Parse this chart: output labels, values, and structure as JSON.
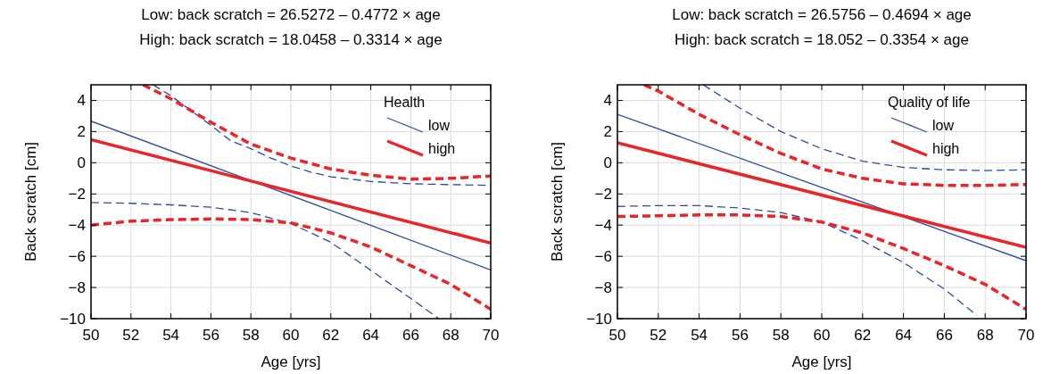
{
  "chart_data": [
    {
      "type": "line",
      "title": "Low: back scratch = 26.5272 – 0.4772 × age",
      "subtitle": "High: back scratch = 18.0458 – 0.3314 × age",
      "xlabel": "Age [yrs]",
      "ylabel": "Back scratch [cm]",
      "legend_title": "Health",
      "legend": "top right",
      "grid": true,
      "xlim": [
        50,
        70
      ],
      "ylim": [
        -10,
        5
      ],
      "xticks": [
        50,
        52,
        54,
        56,
        58,
        60,
        62,
        64,
        66,
        68,
        70
      ],
      "yticks": [
        -10,
        -8,
        -6,
        -4,
        -2,
        0,
        2,
        4
      ],
      "series": [
        {
          "name": "low",
          "color": "#2e4a9e",
          "line_style": "solid",
          "x": [
            50,
            70
          ],
          "values": [
            2.67,
            -6.88
          ]
        },
        {
          "name": "high",
          "color": "#e8262a",
          "line_style": "solid",
          "x": [
            50,
            70
          ],
          "values": [
            1.48,
            -5.15
          ]
        },
        {
          "color": "#2e4a9e",
          "line_style": "dashed",
          "x": [
            53.1,
            54,
            56,
            57,
            58,
            59,
            60,
            61,
            62,
            64,
            66,
            68,
            70
          ],
          "values": [
            5,
            4.3,
            2.4,
            1.4,
            0.9,
            0.3,
            -0.2,
            -0.6,
            -0.9,
            -1.2,
            -1.35,
            -1.4,
            -1.45
          ]
        },
        {
          "color": "#e8262a",
          "line_style": "dashed",
          "x": [
            52.6,
            54,
            56,
            58,
            60,
            62,
            64,
            66,
            68,
            70
          ],
          "values": [
            5,
            4.1,
            2.6,
            1.2,
            0.3,
            -0.4,
            -0.8,
            -1.05,
            -1.0,
            -0.85
          ]
        },
        {
          "color": "#2e4a9e",
          "line_style": "dashed",
          "x": [
            50,
            52,
            54,
            56,
            58,
            60,
            62,
            64,
            66,
            67.4
          ],
          "values": [
            -2.55,
            -2.6,
            -2.7,
            -2.85,
            -3.2,
            -3.9,
            -5.1,
            -6.9,
            -8.7,
            -10
          ]
        },
        {
          "color": "#e8262a",
          "line_style": "dashed",
          "x": [
            50,
            52,
            54,
            56,
            58,
            60,
            62,
            64,
            66,
            68,
            70
          ],
          "values": [
            -4,
            -3.75,
            -3.65,
            -3.6,
            -3.65,
            -3.85,
            -4.5,
            -5.4,
            -6.6,
            -7.8,
            -9.4
          ]
        }
      ]
    },
    {
      "type": "line",
      "title": "Low: back scratch = 26.5756 – 0.4694 × age",
      "subtitle": "High: back scratch = 18.052 – 0.3354 × age",
      "xlabel": "Age [yrs]",
      "ylabel": "Back scratch [cm]",
      "legend_title": "Quality of life",
      "legend": "top right",
      "grid": true,
      "xlim": [
        50,
        70
      ],
      "ylim": [
        -10,
        5
      ],
      "xticks": [
        50,
        52,
        54,
        56,
        58,
        60,
        62,
        64,
        66,
        68,
        70
      ],
      "yticks": [
        -10,
        -8,
        -6,
        -4,
        -2,
        0,
        2,
        4
      ],
      "series": [
        {
          "name": "low",
          "color": "#2e4a9e",
          "line_style": "solid",
          "x": [
            50,
            70
          ],
          "values": [
            3.11,
            -6.28
          ]
        },
        {
          "name": "high",
          "color": "#e8262a",
          "line_style": "solid",
          "x": [
            50,
            70
          ],
          "values": [
            1.28,
            -5.43
          ]
        },
        {
          "color": "#2e4a9e",
          "line_style": "dashed",
          "x": [
            54.2,
            56,
            58,
            60,
            62,
            64,
            66,
            68,
            70
          ],
          "values": [
            5,
            3.5,
            2.0,
            0.9,
            0.1,
            -0.3,
            -0.45,
            -0.5,
            -0.45
          ]
        },
        {
          "color": "#e8262a",
          "line_style": "dashed",
          "x": [
            51.3,
            52,
            54,
            56,
            58,
            60,
            62,
            64,
            66,
            68,
            70
          ],
          "values": [
            5,
            4.6,
            3.1,
            1.8,
            0.6,
            -0.4,
            -1.0,
            -1.35,
            -1.45,
            -1.45,
            -1.4
          ]
        },
        {
          "color": "#2e4a9e",
          "line_style": "dashed",
          "x": [
            50,
            52,
            54,
            56,
            58,
            60,
            62,
            64,
            66,
            67.6
          ],
          "values": [
            -2.8,
            -2.75,
            -2.75,
            -2.9,
            -3.2,
            -3.8,
            -5.0,
            -6.4,
            -8.1,
            -9.8
          ]
        },
        {
          "color": "#e8262a",
          "line_style": "dashed",
          "x": [
            50,
            52,
            54,
            56,
            58,
            60,
            62,
            64,
            66,
            68,
            70
          ],
          "values": [
            -3.45,
            -3.4,
            -3.35,
            -3.35,
            -3.45,
            -3.8,
            -4.5,
            -5.5,
            -6.6,
            -7.8,
            -9.4
          ]
        }
      ]
    }
  ]
}
